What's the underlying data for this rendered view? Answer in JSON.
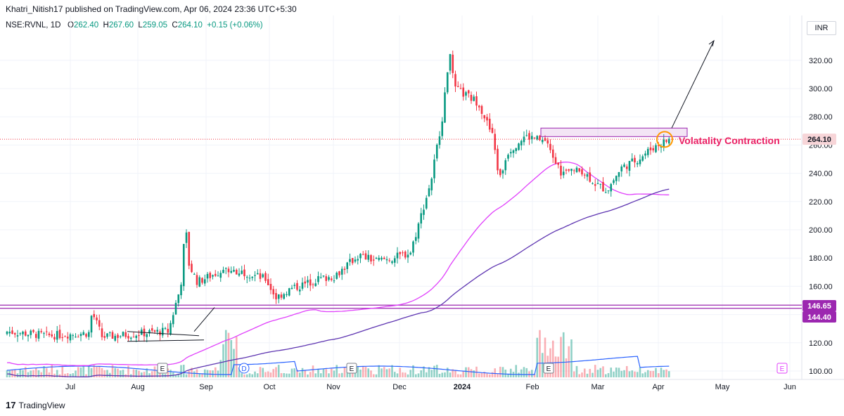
{
  "header": {
    "publisher": "Khatri_Nitish17 published on TradingView.com, Apr 06, 2024 23:36 UTC+5:30"
  },
  "legend": {
    "symbol": "NSE:RVNL, 1D",
    "open_label": "O",
    "open": "262.40",
    "high_label": "H",
    "high": "267.60",
    "low_label": "L",
    "low": "259.05",
    "close_label": "C",
    "close": "264.10",
    "change": "+0.15 (+0.06%)"
  },
  "currency": "INR",
  "footer": {
    "brand": "TradingView",
    "logo_glyph": "17"
  },
  "colors": {
    "up": "#089981",
    "down": "#f23645",
    "ma_fast": "#e040fb",
    "ma_slow": "#5e35b1",
    "volume_ma": "#2962ff",
    "annotation": "#9c27b0",
    "label_text": "#e91e63",
    "circle": "#ff9800"
  },
  "chart_data": {
    "type": "candlestick",
    "y_scale": {
      "min": 100,
      "max": 340,
      "ticks": [
        100,
        120,
        140,
        160,
        180,
        200,
        220,
        240,
        260,
        280,
        300,
        320
      ]
    },
    "y_tick_labels": [
      "100.00",
      "120.00",
      "140.00",
      "160.00",
      "180.00",
      "200.00",
      "220.00",
      "240.00",
      "260.00",
      "280.00",
      "300.00",
      "320.00"
    ],
    "x_ticks": [
      "Jul",
      "Aug",
      "Sep",
      "Oct",
      "Nov",
      "Dec",
      "2024",
      "Feb",
      "Mar",
      "Apr",
      "May",
      "Jun"
    ],
    "price_tags": [
      {
        "value": 264.1,
        "label": "264.10",
        "style": "last"
      },
      {
        "value": 146.65,
        "label": "146.65",
        "style": "level"
      },
      {
        "value": 144.4,
        "label": "144.40",
        "style": "level"
      }
    ],
    "annotation_text": "Volatality Contraction",
    "events": [
      {
        "label": "E",
        "date": "Aug"
      },
      {
        "label": "D",
        "date": "Sep"
      },
      {
        "label": "E",
        "date": "Nov"
      },
      {
        "label": "E",
        "date": "Feb"
      },
      {
        "label": "E",
        "date": "Jun"
      }
    ],
    "key_prices": [
      {
        "date": "Jun 2023",
        "close": 128
      },
      {
        "date": "Jul 2023",
        "close": 122
      },
      {
        "date": "Aug 2023",
        "close": 125
      },
      {
        "date": "Sep 2023",
        "close": 198
      },
      {
        "date": "Oct 2023",
        "close": 170
      },
      {
        "date": "Nov 2023",
        "close": 158
      },
      {
        "date": "Dec 2023",
        "close": 180
      },
      {
        "date": "Jan 2024",
        "close": 330
      },
      {
        "date": "Feb 2024",
        "close": 265
      },
      {
        "date": "Mar 2024",
        "close": 225
      },
      {
        "date": "Apr 2024",
        "close": 264.1
      }
    ]
  }
}
